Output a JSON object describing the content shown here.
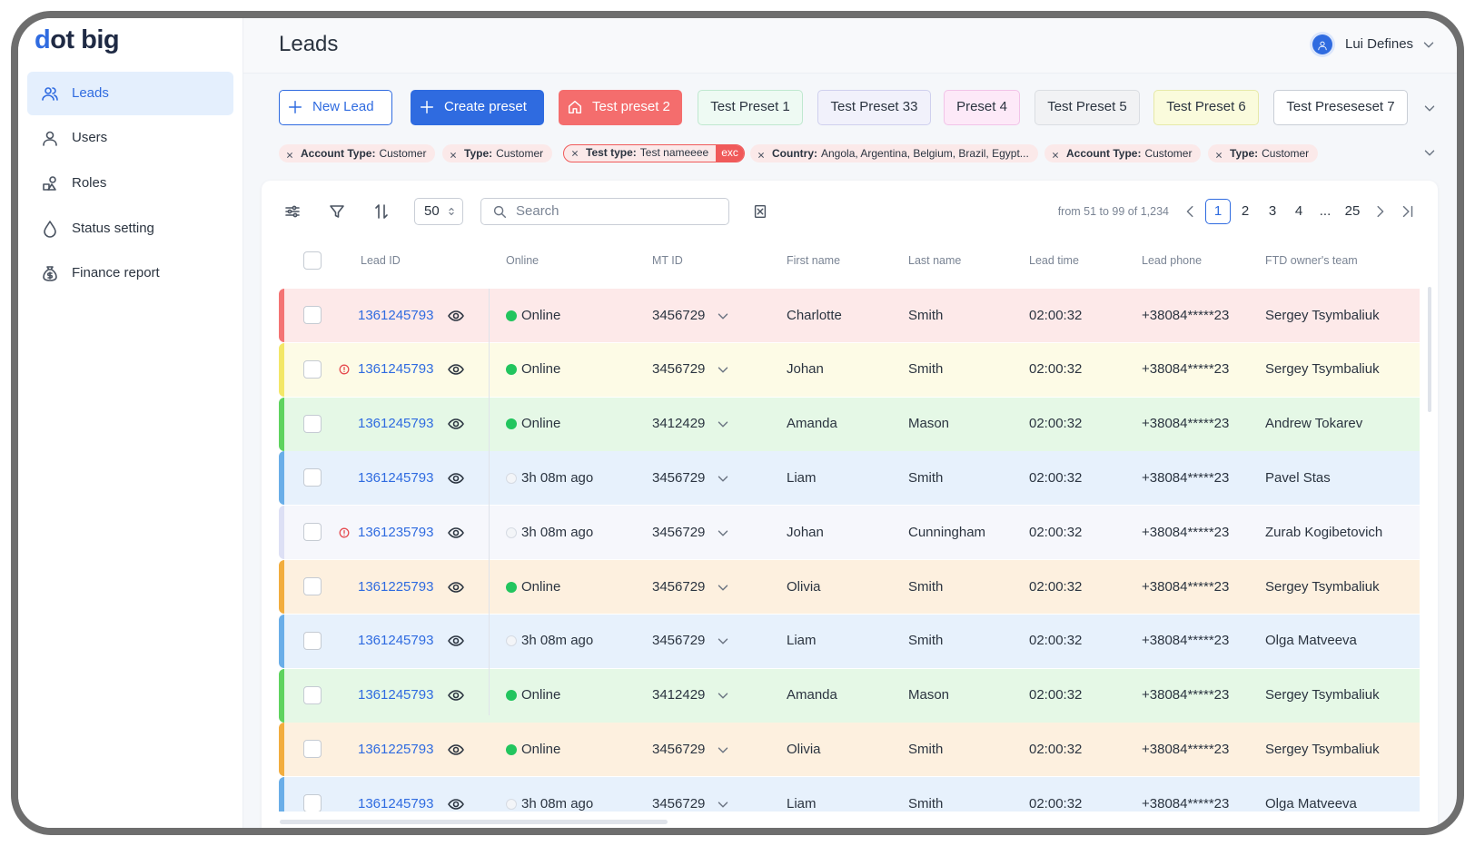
{
  "logo": "dot big",
  "sidebar": [
    {
      "label": "Leads",
      "icon": "users",
      "active": true
    },
    {
      "label": "Users",
      "icon": "user",
      "active": false
    },
    {
      "label": "Roles",
      "icon": "roles",
      "active": false
    },
    {
      "label": "Status setting",
      "icon": "drop",
      "active": false
    },
    {
      "label": "Finance report",
      "icon": "bag",
      "active": false
    }
  ],
  "header": {
    "title": "Leads",
    "user": "Lui Defines"
  },
  "presets": [
    {
      "label": "New Lead",
      "icon": "plus",
      "bg": "#ffffff",
      "border": "#2f6be0",
      "text": "#2f6be0"
    },
    {
      "label": "Create preset",
      "icon": "plus",
      "bg": "#2f6be0",
      "border": "#2f6be0",
      "text": "#ffffff"
    },
    {
      "label": "Test preset 2",
      "icon": "home",
      "bg": "#f46d6d",
      "border": "#f46d6d",
      "text": "#ffffff"
    },
    {
      "label": "Test Preset 1",
      "bg": "#eefaf3",
      "border": "#bfe8cf",
      "text": "#2b3440"
    },
    {
      "label": "Test Preset 33",
      "bg": "#f1f1fb",
      "border": "#cfd0ee",
      "text": "#2b3440"
    },
    {
      "label": "Preset 4",
      "bg": "#fde9f8",
      "border": "#f2c3e8",
      "text": "#2b3440"
    },
    {
      "label": "Test Preset 5",
      "bg": "#f1f2f4",
      "border": "#dadde2",
      "text": "#2b3440"
    },
    {
      "label": "Test Preset 6",
      "bg": "#fafbdc",
      "border": "#e6e9a8",
      "text": "#2b3440"
    },
    {
      "label": "Test Preseseset 7",
      "bg": "#ffffff",
      "border": "#c9ced6",
      "text": "#2b3440"
    }
  ],
  "filters": [
    {
      "label": "Account Type:",
      "value": "Customer"
    },
    {
      "label": "Type:",
      "value": "Customer"
    },
    {
      "label": "Test type:",
      "value": "Test nameeee",
      "tag": "exc"
    },
    {
      "label": "Country:",
      "value": "Angola, Argentina, Belgium, Brazil, Egypt..."
    },
    {
      "label": "Account Type:",
      "value": "Customer"
    },
    {
      "label": "Type:",
      "value": "Customer"
    }
  ],
  "toolbar": {
    "page_size": "50",
    "search_placeholder": "Search",
    "range": "from 51 to 99 of 1,234",
    "pages": [
      {
        "label": "1",
        "active": true
      },
      {
        "label": "2",
        "active": false
      },
      {
        "label": "3",
        "active": false
      },
      {
        "label": "4",
        "active": false
      },
      {
        "label": "...",
        "active": false
      },
      {
        "label": "25",
        "active": false
      }
    ]
  },
  "table": {
    "columns": [
      "Lead ID",
      "Online",
      "MT ID",
      "First name",
      "Last name",
      "Lead time",
      "Lead phone",
      "FTD owner's team"
    ],
    "rows": [
      {
        "color": "#f47474",
        "bg": "#fde9e9",
        "alert": false,
        "online": true,
        "cells": [
          "1361245793",
          "Online",
          "3456729",
          "Charlotte",
          "Smith",
          "02:00:32",
          "+38084*****23",
          "Sergey Tsymbaliuk"
        ]
      },
      {
        "color": "#f3e768",
        "bg": "#fdfbe6",
        "alert": true,
        "online": true,
        "cells": [
          "1361245793",
          "Online",
          "3456729",
          "Johan",
          "Smith",
          "02:00:32",
          "+38084*****23",
          "Sergey Tsymbaliuk"
        ]
      },
      {
        "color": "#5fd35f",
        "bg": "#e5f8e6",
        "alert": false,
        "online": true,
        "cells": [
          "1361245793",
          "Online",
          "3412429",
          "Amanda",
          "Mason",
          "02:00:32",
          "+38084*****23",
          "Andrew Tokarev"
        ]
      },
      {
        "color": "#6aaee8",
        "bg": "#e7f1fc",
        "alert": false,
        "online": false,
        "cells": [
          "1361245793",
          "3h 08m ago",
          "3456729",
          "Liam",
          "Smith",
          "02:00:32",
          "+38084*****23",
          "Pavel Stas"
        ]
      },
      {
        "color": "#dde0f5",
        "bg": "#f6f7fc",
        "alert": true,
        "online": false,
        "cells": [
          "1361235793",
          "3h 08m ago",
          "3456729",
          "Johan",
          "Cunningham",
          "02:00:32",
          "+38084*****23",
          "Zurab Kogibetovich"
        ]
      },
      {
        "color": "#f2ad3e",
        "bg": "#fdf0df",
        "alert": false,
        "online": true,
        "cells": [
          "1361225793",
          "Online",
          "3456729",
          "Olivia",
          "Smith",
          "02:00:32",
          "+38084*****23",
          "Sergey Tsymbaliuk"
        ]
      },
      {
        "color": "#6aaee8",
        "bg": "#e7f1fc",
        "alert": false,
        "online": false,
        "cells": [
          "1361245793",
          "3h 08m ago",
          "3456729",
          "Liam",
          "Smith",
          "02:00:32",
          "+38084*****23",
          "Olga Matveeva"
        ]
      },
      {
        "color": "#5fd35f",
        "bg": "#e5f8e6",
        "alert": false,
        "online": true,
        "cells": [
          "1361245793",
          "Online",
          "3412429",
          "Amanda",
          "Mason",
          "02:00:32",
          "+38084*****23",
          "Sergey Tsymbaliuk"
        ]
      },
      {
        "color": "#f2ad3e",
        "bg": "#fdf0df",
        "alert": false,
        "online": true,
        "cells": [
          "1361225793",
          "Online",
          "3456729",
          "Olivia",
          "Smith",
          "02:00:32",
          "+38084*****23",
          "Sergey Tsymbaliuk"
        ]
      },
      {
        "color": "#6aaee8",
        "bg": "#e7f1fc",
        "alert": false,
        "online": false,
        "cells": [
          "1361245793",
          "3h 08m ago",
          "3456729",
          "Liam",
          "Smith",
          "02:00:32",
          "+38084*****23",
          "Olga Matveeva"
        ]
      }
    ]
  }
}
